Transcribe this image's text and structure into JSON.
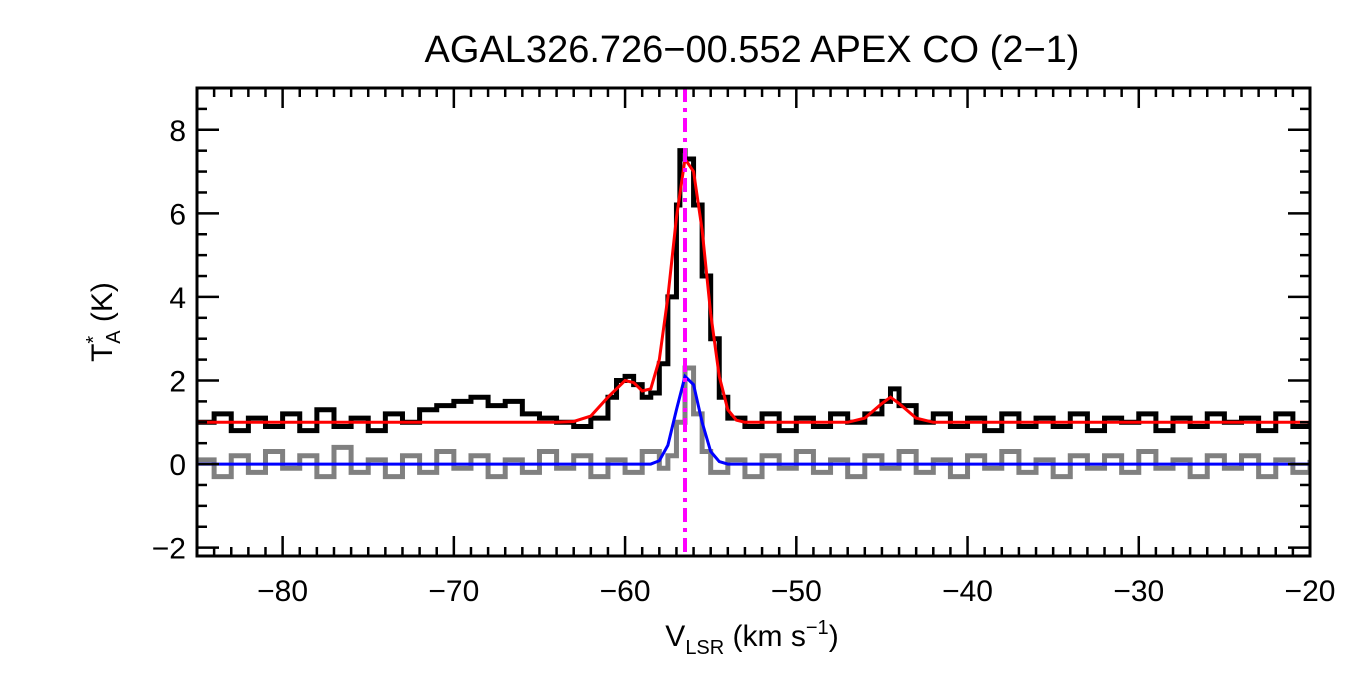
{
  "chart_data": {
    "type": "line",
    "title": "AGAL326.726−00.552  APEX CO (2−1)",
    "xlabel": {
      "main": "V",
      "sub": "LSR",
      "unit_pre": " (km s",
      "sup": "−1",
      "unit_post": ")"
    },
    "ylabel": {
      "main": "T",
      "sup": "*",
      "sub": "A",
      "unit": " (K)"
    },
    "xlim": [
      -85,
      -20
    ],
    "ylim": [
      -2.2,
      9.0
    ],
    "x_ticks": [
      -80,
      -70,
      -60,
      -50,
      -40,
      -30,
      -20
    ],
    "x_tick_labels": [
      "−80",
      "−70",
      "−60",
      "−50",
      "−40",
      "−30",
      "−20"
    ],
    "y_ticks": [
      -2,
      0,
      2,
      4,
      6,
      8
    ],
    "y_tick_labels": [
      "−2",
      "0",
      "2",
      "4",
      "6",
      "8"
    ],
    "grid": false,
    "marker_velocity": -56.5,
    "colors": {
      "observed": "#000000",
      "residual": "#808080",
      "fit_total": "#ff0000",
      "fit_component": "#0000ff",
      "marker": "#ff00ff"
    },
    "series": [
      {
        "style": "step",
        "color": "#000000",
        "points": [
          [
            -85.0,
            1.0
          ],
          [
            -84.0,
            1.2
          ],
          [
            -83.0,
            0.8
          ],
          [
            -82.0,
            1.1
          ],
          [
            -81.0,
            0.9
          ],
          [
            -80.0,
            1.2
          ],
          [
            -79.0,
            0.8
          ],
          [
            -78.0,
            1.3
          ],
          [
            -77.0,
            0.9
          ],
          [
            -76.0,
            1.1
          ],
          [
            -75.0,
            0.8
          ],
          [
            -74.0,
            1.2
          ],
          [
            -73.0,
            1.0
          ],
          [
            -72.0,
            1.3
          ],
          [
            -71.0,
            1.4
          ],
          [
            -70.0,
            1.5
          ],
          [
            -69.0,
            1.6
          ],
          [
            -68.0,
            1.4
          ],
          [
            -67.0,
            1.5
          ],
          [
            -66.0,
            1.2
          ],
          [
            -65.0,
            1.1
          ],
          [
            -64.0,
            1.0
          ],
          [
            -63.0,
            0.9
          ],
          [
            -62.0,
            1.1
          ],
          [
            -61.0,
            1.6
          ],
          [
            -60.5,
            2.0
          ],
          [
            -60.0,
            2.1
          ],
          [
            -59.5,
            1.9
          ],
          [
            -59.0,
            1.6
          ],
          [
            -58.5,
            1.7
          ],
          [
            -58.0,
            2.4
          ],
          [
            -57.5,
            4.0
          ],
          [
            -57.0,
            6.2
          ],
          [
            -56.8,
            7.5
          ],
          [
            -56.5,
            7.3
          ],
          [
            -56.0,
            6.2
          ],
          [
            -55.5,
            4.5
          ],
          [
            -55.0,
            3.0
          ],
          [
            -54.5,
            1.6
          ],
          [
            -54.0,
            1.1
          ],
          [
            -53.0,
            0.9
          ],
          [
            -52.0,
            1.2
          ],
          [
            -51.0,
            0.8
          ],
          [
            -50.0,
            1.1
          ],
          [
            -49.0,
            0.9
          ],
          [
            -48.0,
            1.2
          ],
          [
            -47.0,
            1.0
          ],
          [
            -46.0,
            1.2
          ],
          [
            -45.0,
            1.5
          ],
          [
            -44.5,
            1.8
          ],
          [
            -44.0,
            1.4
          ],
          [
            -43.0,
            1.0
          ],
          [
            -42.0,
            1.2
          ],
          [
            -41.0,
            0.9
          ],
          [
            -40.0,
            1.1
          ],
          [
            -39.0,
            0.8
          ],
          [
            -38.0,
            1.2
          ],
          [
            -37.0,
            0.9
          ],
          [
            -36.0,
            1.1
          ],
          [
            -35.0,
            0.9
          ],
          [
            -34.0,
            1.2
          ],
          [
            -33.0,
            0.8
          ],
          [
            -32.0,
            1.1
          ],
          [
            -31.0,
            1.0
          ],
          [
            -30.0,
            1.2
          ],
          [
            -29.0,
            0.8
          ],
          [
            -28.0,
            1.1
          ],
          [
            -27.0,
            0.9
          ],
          [
            -26.0,
            1.2
          ],
          [
            -25.0,
            1.0
          ],
          [
            -24.0,
            1.1
          ],
          [
            -23.0,
            0.8
          ],
          [
            -22.0,
            1.2
          ],
          [
            -21.0,
            0.9
          ],
          [
            -20.0,
            1.0
          ]
        ]
      },
      {
        "style": "step",
        "color": "#808080",
        "points": [
          [
            -85.0,
            0.1
          ],
          [
            -84.0,
            -0.3
          ],
          [
            -83.0,
            0.2
          ],
          [
            -82.0,
            -0.2
          ],
          [
            -81.0,
            0.3
          ],
          [
            -80.0,
            -0.1
          ],
          [
            -79.0,
            0.2
          ],
          [
            -78.0,
            -0.3
          ],
          [
            -77.0,
            0.4
          ],
          [
            -76.0,
            -0.2
          ],
          [
            -75.0,
            0.1
          ],
          [
            -74.0,
            -0.3
          ],
          [
            -73.0,
            0.2
          ],
          [
            -72.0,
            -0.2
          ],
          [
            -71.0,
            0.3
          ],
          [
            -70.0,
            -0.1
          ],
          [
            -69.0,
            0.2
          ],
          [
            -68.0,
            -0.3
          ],
          [
            -67.0,
            0.1
          ],
          [
            -66.0,
            -0.2
          ],
          [
            -65.0,
            0.3
          ],
          [
            -64.0,
            -0.1
          ],
          [
            -63.0,
            0.2
          ],
          [
            -62.0,
            -0.3
          ],
          [
            -61.0,
            0.1
          ],
          [
            -60.0,
            -0.2
          ],
          [
            -59.0,
            0.3
          ],
          [
            -58.0,
            -0.1
          ],
          [
            -57.5,
            0.2
          ],
          [
            -57.0,
            1.0
          ],
          [
            -56.5,
            2.3
          ],
          [
            -56.0,
            1.2
          ],
          [
            -55.5,
            0.3
          ],
          [
            -55.0,
            -0.2
          ],
          [
            -54.0,
            0.1
          ],
          [
            -53.0,
            -0.3
          ],
          [
            -52.0,
            0.2
          ],
          [
            -51.0,
            -0.1
          ],
          [
            -50.0,
            0.3
          ],
          [
            -49.0,
            -0.2
          ],
          [
            -48.0,
            0.1
          ],
          [
            -47.0,
            -0.3
          ],
          [
            -46.0,
            0.2
          ],
          [
            -45.0,
            -0.1
          ],
          [
            -44.0,
            0.3
          ],
          [
            -43.0,
            -0.2
          ],
          [
            -42.0,
            0.1
          ],
          [
            -41.0,
            -0.3
          ],
          [
            -40.0,
            0.2
          ],
          [
            -39.0,
            -0.1
          ],
          [
            -38.0,
            0.3
          ],
          [
            -37.0,
            -0.2
          ],
          [
            -36.0,
            0.1
          ],
          [
            -35.0,
            -0.3
          ],
          [
            -34.0,
            0.2
          ],
          [
            -33.0,
            -0.1
          ],
          [
            -32.0,
            0.2
          ],
          [
            -31.0,
            -0.2
          ],
          [
            -30.0,
            0.3
          ],
          [
            -29.0,
            -0.1
          ],
          [
            -28.0,
            0.1
          ],
          [
            -27.0,
            -0.3
          ],
          [
            -26.0,
            0.2
          ],
          [
            -25.0,
            -0.1
          ],
          [
            -24.0,
            0.2
          ],
          [
            -23.0,
            -0.3
          ],
          [
            -22.0,
            0.1
          ],
          [
            -21.0,
            -0.2
          ],
          [
            -20.0,
            0.1
          ]
        ]
      },
      {
        "style": "line",
        "color": "#ff0000",
        "points": [
          [
            -85.0,
            1.0
          ],
          [
            -64.0,
            1.0
          ],
          [
            -63.0,
            1.02
          ],
          [
            -62.0,
            1.15
          ],
          [
            -61.0,
            1.6
          ],
          [
            -60.0,
            2.0
          ],
          [
            -59.5,
            1.95
          ],
          [
            -59.0,
            1.75
          ],
          [
            -58.5,
            1.8
          ],
          [
            -58.0,
            2.5
          ],
          [
            -57.5,
            4.0
          ],
          [
            -57.0,
            5.9
          ],
          [
            -56.5,
            7.3
          ],
          [
            -56.0,
            7.0
          ],
          [
            -55.5,
            5.6
          ],
          [
            -55.0,
            3.6
          ],
          [
            -54.5,
            2.1
          ],
          [
            -54.0,
            1.3
          ],
          [
            -53.5,
            1.05
          ],
          [
            -53.0,
            1.0
          ],
          [
            -47.0,
            1.0
          ],
          [
            -46.0,
            1.1
          ],
          [
            -45.0,
            1.45
          ],
          [
            -44.5,
            1.6
          ],
          [
            -44.0,
            1.45
          ],
          [
            -43.0,
            1.1
          ],
          [
            -42.0,
            1.0
          ],
          [
            -20.0,
            1.0
          ]
        ]
      },
      {
        "style": "line",
        "color": "#0000ff",
        "points": [
          [
            -85.0,
            0.0
          ],
          [
            -58.5,
            0.0
          ],
          [
            -58.0,
            0.08
          ],
          [
            -57.5,
            0.45
          ],
          [
            -57.0,
            1.3
          ],
          [
            -56.5,
            2.1
          ],
          [
            -56.0,
            1.9
          ],
          [
            -55.5,
            1.0
          ],
          [
            -55.0,
            0.3
          ],
          [
            -54.5,
            0.06
          ],
          [
            -54.0,
            0.0
          ],
          [
            -20.0,
            0.0
          ]
        ]
      }
    ]
  }
}
